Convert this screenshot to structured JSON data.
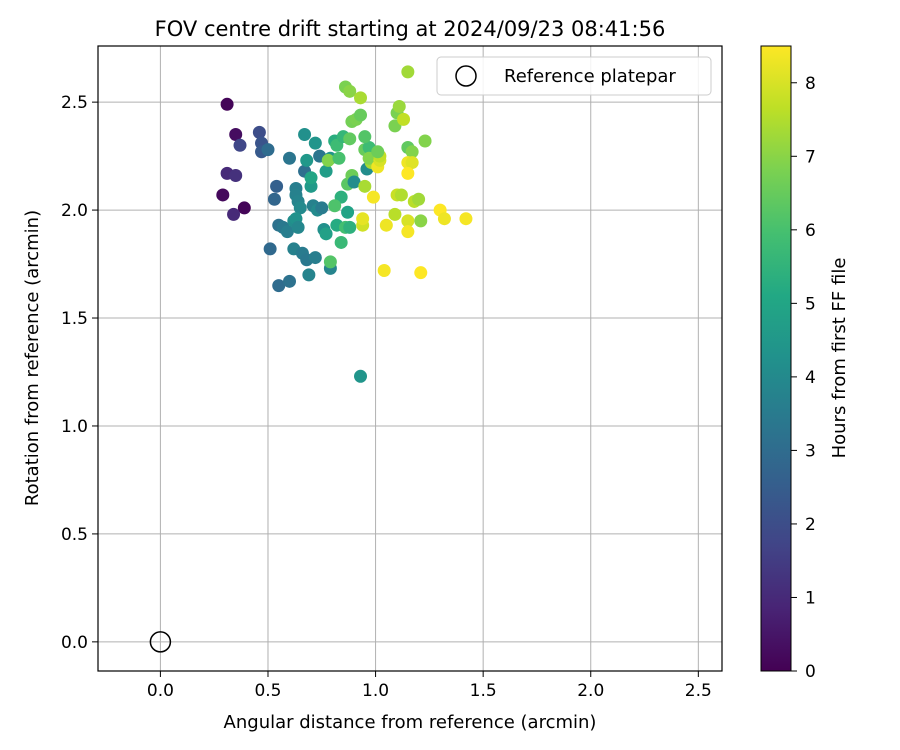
{
  "chart_data": {
    "type": "scatter",
    "title": "FOV centre drift starting at 2024/09/23 08:41:56",
    "xlabel": "Angular distance from reference (arcmin)",
    "ylabel": "Rotation from reference (arcmin)",
    "xlim": [
      -0.29,
      2.61
    ],
    "ylim": [
      -0.135,
      2.76
    ],
    "xticks": [
      0.0,
      0.5,
      1.0,
      1.5,
      2.0,
      2.5
    ],
    "xtick_labels": [
      "0.0",
      "0.5",
      "1.0",
      "1.5",
      "2.0",
      "2.5"
    ],
    "yticks": [
      0.0,
      0.5,
      1.0,
      1.5,
      2.0,
      2.5
    ],
    "ytick_labels": [
      "0.0",
      "0.5",
      "1.0",
      "1.5",
      "2.0",
      "2.5"
    ],
    "grid": true,
    "legend": {
      "placement": "top-right",
      "label": "Reference platepar"
    },
    "reference_point": {
      "x": 0.0,
      "y": 0.0
    },
    "colorbar": {
      "label": "Hours from first FF file",
      "min": 0,
      "max": 8.5,
      "ticks": [
        0,
        1,
        2,
        3,
        4,
        5,
        6,
        7,
        8
      ],
      "tick_labels": [
        "0",
        "1",
        "2",
        "3",
        "4",
        "5",
        "6",
        "7",
        "8"
      ],
      "colormap": "viridis"
    },
    "series": [
      {
        "colour_scale": "Hours from first FF file",
        "points": [
          {
            "x": 0.31,
            "y": 2.49,
            "c": 0.1
          },
          {
            "x": 0.35,
            "y": 2.35,
            "c": 0.3
          },
          {
            "x": 0.29,
            "y": 2.07,
            "c": 0.2
          },
          {
            "x": 0.39,
            "y": 2.01,
            "c": 0.1
          },
          {
            "x": 0.31,
            "y": 2.17,
            "c": 1.0
          },
          {
            "x": 0.35,
            "y": 2.16,
            "c": 1.2
          },
          {
            "x": 0.34,
            "y": 1.98,
            "c": 1.0
          },
          {
            "x": 0.37,
            "y": 2.3,
            "c": 1.8
          },
          {
            "x": 0.46,
            "y": 2.36,
            "c": 2.0
          },
          {
            "x": 0.47,
            "y": 2.31,
            "c": 2.2
          },
          {
            "x": 0.47,
            "y": 2.27,
            "c": 2.4
          },
          {
            "x": 0.5,
            "y": 2.28,
            "c": 3.0
          },
          {
            "x": 0.54,
            "y": 2.11,
            "c": 2.6
          },
          {
            "x": 0.53,
            "y": 2.05,
            "c": 2.8
          },
          {
            "x": 0.51,
            "y": 1.82,
            "c": 2.9
          },
          {
            "x": 0.55,
            "y": 1.93,
            "c": 3.2
          },
          {
            "x": 0.57,
            "y": 1.92,
            "c": 3.4
          },
          {
            "x": 0.59,
            "y": 1.9,
            "c": 3.6
          },
          {
            "x": 0.55,
            "y": 1.65,
            "c": 3.0
          },
          {
            "x": 0.6,
            "y": 1.67,
            "c": 3.2
          },
          {
            "x": 0.6,
            "y": 2.24,
            "c": 3.3
          },
          {
            "x": 0.63,
            "y": 2.1,
            "c": 3.6
          },
          {
            "x": 0.63,
            "y": 2.07,
            "c": 3.7
          },
          {
            "x": 0.64,
            "y": 2.04,
            "c": 3.8
          },
          {
            "x": 0.65,
            "y": 2.01,
            "c": 4.0
          },
          {
            "x": 0.62,
            "y": 1.95,
            "c": 4.1
          },
          {
            "x": 0.63,
            "y": 1.96,
            "c": 4.3
          },
          {
            "x": 0.64,
            "y": 1.92,
            "c": 3.9
          },
          {
            "x": 0.62,
            "y": 1.82,
            "c": 3.7
          },
          {
            "x": 0.66,
            "y": 1.8,
            "c": 3.5
          },
          {
            "x": 0.68,
            "y": 1.77,
            "c": 3.4
          },
          {
            "x": 0.72,
            "y": 1.78,
            "c": 3.6
          },
          {
            "x": 0.69,
            "y": 1.7,
            "c": 3.8
          },
          {
            "x": 0.67,
            "y": 2.35,
            "c": 4.2
          },
          {
            "x": 0.67,
            "y": 2.18,
            "c": 3.1
          },
          {
            "x": 0.68,
            "y": 2.23,
            "c": 4.5
          },
          {
            "x": 0.72,
            "y": 2.31,
            "c": 4.4
          },
          {
            "x": 0.74,
            "y": 2.25,
            "c": 3.3
          },
          {
            "x": 0.7,
            "y": 2.11,
            "c": 4.6
          },
          {
            "x": 0.7,
            "y": 2.15,
            "c": 5.0
          },
          {
            "x": 0.71,
            "y": 2.02,
            "c": 3.7
          },
          {
            "x": 0.73,
            "y": 2.0,
            "c": 4.0
          },
          {
            "x": 0.75,
            "y": 2.01,
            "c": 3.5
          },
          {
            "x": 0.76,
            "y": 1.91,
            "c": 4.2
          },
          {
            "x": 0.77,
            "y": 1.89,
            "c": 4.8
          },
          {
            "x": 0.79,
            "y": 1.73,
            "c": 3.8
          },
          {
            "x": 0.79,
            "y": 1.76,
            "c": 6.2
          },
          {
            "x": 0.77,
            "y": 2.18,
            "c": 4.7
          },
          {
            "x": 0.79,
            "y": 2.24,
            "c": 4.4
          },
          {
            "x": 0.78,
            "y": 2.23,
            "c": 6.9
          },
          {
            "x": 0.81,
            "y": 2.32,
            "c": 5.3
          },
          {
            "x": 0.82,
            "y": 2.3,
            "c": 5.8
          },
          {
            "x": 0.83,
            "y": 2.24,
            "c": 6.0
          },
          {
            "x": 0.85,
            "y": 2.34,
            "c": 5.6
          },
          {
            "x": 0.84,
            "y": 2.06,
            "c": 5.4
          },
          {
            "x": 0.81,
            "y": 2.02,
            "c": 6.1
          },
          {
            "x": 0.82,
            "y": 1.93,
            "c": 5.2
          },
          {
            "x": 0.84,
            "y": 1.85,
            "c": 5.7
          },
          {
            "x": 0.86,
            "y": 1.92,
            "c": 5.9
          },
          {
            "x": 0.87,
            "y": 1.99,
            "c": 4.9
          },
          {
            "x": 0.87,
            "y": 2.12,
            "c": 6.3
          },
          {
            "x": 0.89,
            "y": 2.16,
            "c": 6.6
          },
          {
            "x": 0.9,
            "y": 2.13,
            "c": 4.1
          },
          {
            "x": 0.88,
            "y": 2.33,
            "c": 6.4
          },
          {
            "x": 0.89,
            "y": 2.41,
            "c": 6.7
          },
          {
            "x": 0.91,
            "y": 2.42,
            "c": 6.8
          },
          {
            "x": 0.93,
            "y": 2.44,
            "c": 6.5
          },
          {
            "x": 0.86,
            "y": 2.57,
            "c": 6.8
          },
          {
            "x": 0.88,
            "y": 2.55,
            "c": 7.0
          },
          {
            "x": 0.93,
            "y": 2.52,
            "c": 7.4
          },
          {
            "x": 0.88,
            "y": 1.92,
            "c": 5.4
          },
          {
            "x": 0.93,
            "y": 1.23,
            "c": 4.4
          },
          {
            "x": 0.94,
            "y": 1.93,
            "c": 7.9
          },
          {
            "x": 0.94,
            "y": 1.96,
            "c": 8.2
          },
          {
            "x": 0.95,
            "y": 2.11,
            "c": 7.4
          },
          {
            "x": 0.96,
            "y": 2.19,
            "c": 4.1
          },
          {
            "x": 0.95,
            "y": 2.28,
            "c": 6.5
          },
          {
            "x": 0.97,
            "y": 2.29,
            "c": 5.8
          },
          {
            "x": 0.95,
            "y": 2.34,
            "c": 6.2
          },
          {
            "x": 0.98,
            "y": 2.22,
            "c": 7.4
          },
          {
            "x": 0.97,
            "y": 2.24,
            "c": 6.9
          },
          {
            "x": 0.99,
            "y": 2.06,
            "c": 8.4
          },
          {
            "x": 1.01,
            "y": 2.2,
            "c": 8.3
          },
          {
            "x": 1.02,
            "y": 2.23,
            "c": 8.0
          },
          {
            "x": 1.02,
            "y": 2.25,
            "c": 7.7
          },
          {
            "x": 1.01,
            "y": 2.27,
            "c": 6.6
          },
          {
            "x": 1.04,
            "y": 1.72,
            "c": 8.4
          },
          {
            "x": 1.05,
            "y": 1.93,
            "c": 8.3
          },
          {
            "x": 1.09,
            "y": 1.98,
            "c": 7.6
          },
          {
            "x": 1.1,
            "y": 2.07,
            "c": 7.8
          },
          {
            "x": 1.12,
            "y": 2.07,
            "c": 7.5
          },
          {
            "x": 1.09,
            "y": 2.39,
            "c": 6.8
          },
          {
            "x": 1.1,
            "y": 2.45,
            "c": 6.8
          },
          {
            "x": 1.11,
            "y": 2.48,
            "c": 7.2
          },
          {
            "x": 1.13,
            "y": 2.42,
            "c": 7.7
          },
          {
            "x": 1.15,
            "y": 2.64,
            "c": 7.3
          },
          {
            "x": 1.15,
            "y": 2.29,
            "c": 6.4
          },
          {
            "x": 1.17,
            "y": 2.27,
            "c": 6.9
          },
          {
            "x": 1.15,
            "y": 2.22,
            "c": 8.3
          },
          {
            "x": 1.17,
            "y": 2.22,
            "c": 8.1
          },
          {
            "x": 1.15,
            "y": 2.17,
            "c": 8.5
          },
          {
            "x": 1.15,
            "y": 1.95,
            "c": 8.0
          },
          {
            "x": 1.15,
            "y": 1.9,
            "c": 8.4
          },
          {
            "x": 1.18,
            "y": 2.04,
            "c": 7.6
          },
          {
            "x": 1.2,
            "y": 2.05,
            "c": 7.3
          },
          {
            "x": 1.21,
            "y": 1.95,
            "c": 7.0
          },
          {
            "x": 1.21,
            "y": 1.71,
            "c": 8.5
          },
          {
            "x": 1.23,
            "y": 2.32,
            "c": 6.9
          },
          {
            "x": 1.3,
            "y": 2.0,
            "c": 8.5
          },
          {
            "x": 1.32,
            "y": 1.96,
            "c": 8.3
          },
          {
            "x": 1.42,
            "y": 1.96,
            "c": 8.4
          }
        ]
      }
    ]
  }
}
